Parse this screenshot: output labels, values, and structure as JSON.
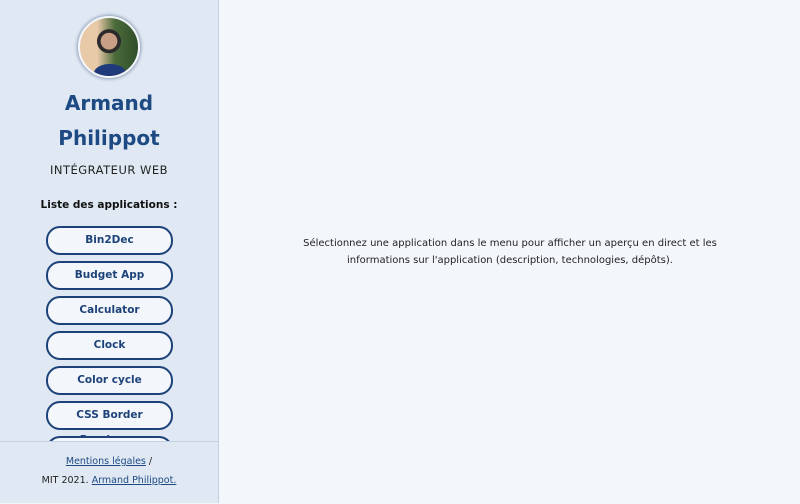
{
  "profile": {
    "name_line1": "Armand",
    "name_line2": "Philippot",
    "role": "INTÉGRATEUR WEB"
  },
  "sidebar": {
    "list_title": "Liste des applications :",
    "apps": [
      "Bin2Dec",
      "Budget App",
      "Calculator",
      "Clock",
      "Color cycle",
      "CSS Border Previewer",
      ""
    ]
  },
  "footer": {
    "legal_link": "Mentions légales",
    "separator": "/",
    "license": "MIT 2021.",
    "author_link": "Armand Philippot."
  },
  "main": {
    "message": "Sélectionnez une application dans le menu pour afficher un aperçu en direct et les informations sur l'application (description, technologies, dépôts)."
  },
  "colors": {
    "accent": "#1d4279",
    "sidebar_bg": "#dfe8f3",
    "main_bg": "#f3f6fb"
  }
}
